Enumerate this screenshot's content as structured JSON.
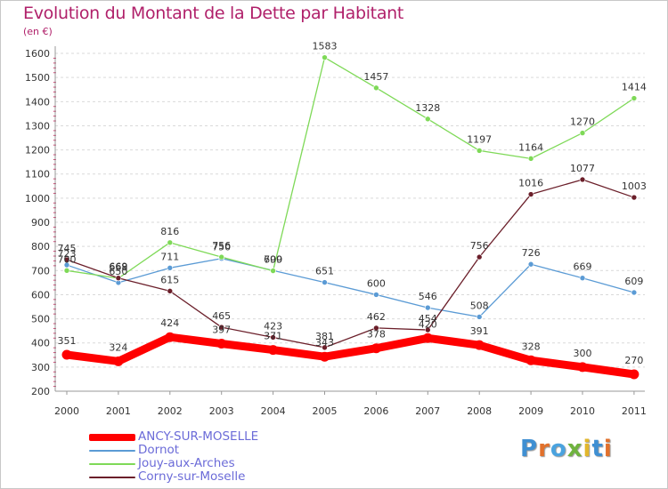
{
  "header": {
    "title": "Evolution du Montant de la Dette par Habitant",
    "subtitle": "(en €)"
  },
  "logo": {
    "text": "Proxiti",
    "colors": [
      "#3f8fd2",
      "#e2712c",
      "#4aa3df",
      "#6fb33e",
      "#e2b72c",
      "#3f8fd2",
      "#e2712c"
    ]
  },
  "chart_data": {
    "type": "line",
    "title": "Evolution du Montant de la Dette par Habitant",
    "subtitle": "(en €)",
    "xlabel": "",
    "ylabel": "",
    "x": [
      "2000",
      "2001",
      "2002",
      "2003",
      "2004",
      "2005",
      "2006",
      "2007",
      "2008",
      "2009",
      "2010",
      "2011"
    ],
    "ylim": [
      200,
      1600
    ],
    "yticks": [
      "200",
      "300",
      "400",
      "500",
      "600",
      "700",
      "800",
      "900",
      "1000",
      "1100",
      "1200",
      "1300",
      "1400",
      "1500",
      "1600"
    ],
    "grid": "horizontal dashed",
    "legend_position": "bottom-left",
    "series": [
      {
        "name": "ANCY-SUR-MOSELLE",
        "color": "#ff0000",
        "emphasis": true,
        "values": [
          351,
          324,
          424,
          397,
          371,
          343,
          378,
          420,
          391,
          328,
          300,
          270
        ]
      },
      {
        "name": "Dornot",
        "color": "#5b9bd5",
        "values": [
          723,
          650,
          711,
          750,
          700,
          651,
          600,
          546,
          508,
          726,
          669,
          609
        ]
      },
      {
        "name": "Jouy-aux-Arches",
        "color": "#7ed957",
        "values": [
          700,
          668,
          816,
          756,
          699,
          1583,
          1457,
          1328,
          1197,
          1164,
          1270,
          1414
        ]
      },
      {
        "name": "Corny-sur-Moselle",
        "color": "#6b1f2a",
        "values": [
          745,
          669,
          615,
          465,
          423,
          381,
          462,
          454,
          756,
          1016,
          1077,
          1003
        ]
      }
    ]
  }
}
